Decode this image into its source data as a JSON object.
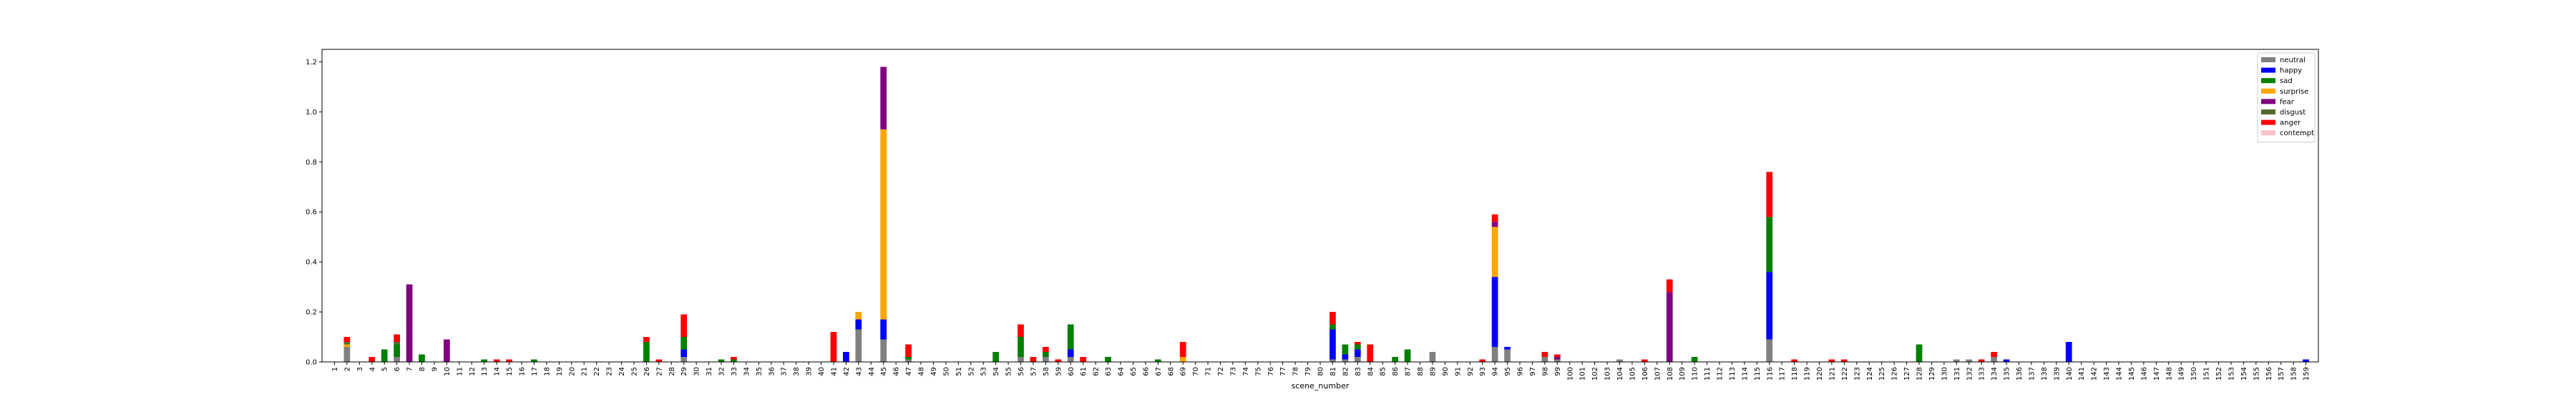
{
  "chart_data": {
    "type": "bar",
    "stacked": true,
    "xlabel": "scene_number",
    "ylabel": "",
    "ylim": [
      0,
      1.25
    ],
    "yticks": [
      "0.0",
      "0.2",
      "0.4",
      "0.6",
      "0.8",
      "1.0",
      "1.2"
    ],
    "x_range": [
      1,
      159
    ],
    "legend_position": "upper right",
    "grid": false,
    "series": [
      {
        "name": "neutral",
        "color": "#808080"
      },
      {
        "name": "happy",
        "color": "#0000ff"
      },
      {
        "name": "sad",
        "color": "#008000"
      },
      {
        "name": "surprise",
        "color": "#ffa500"
      },
      {
        "name": "fear",
        "color": "#800080"
      },
      {
        "name": "disgust",
        "color": "#556b2f"
      },
      {
        "name": "anger",
        "color": "#ff0000"
      },
      {
        "name": "contempt",
        "color": "#ffc0cb"
      }
    ],
    "data": [
      {
        "scene": 2,
        "neutral": 0.06,
        "happy": 0,
        "sad": 0,
        "surprise": 0.01,
        "fear": 0,
        "disgust": 0.01,
        "anger": 0.02,
        "contempt": 0
      },
      {
        "scene": 4,
        "neutral": 0,
        "happy": 0,
        "sad": 0,
        "surprise": 0,
        "fear": 0,
        "disgust": 0,
        "anger": 0.02,
        "contempt": 0
      },
      {
        "scene": 5,
        "neutral": 0,
        "happy": 0,
        "sad": 0.05,
        "surprise": 0,
        "fear": 0,
        "disgust": 0,
        "anger": 0,
        "contempt": 0
      },
      {
        "scene": 6,
        "neutral": 0.02,
        "happy": 0,
        "sad": 0.05,
        "surprise": 0,
        "fear": 0,
        "disgust": 0.01,
        "anger": 0.03,
        "contempt": 0
      },
      {
        "scene": 7,
        "neutral": 0,
        "happy": 0,
        "sad": 0,
        "surprise": 0,
        "fear": 0.31,
        "disgust": 0,
        "anger": 0,
        "contempt": 0
      },
      {
        "scene": 8,
        "neutral": 0,
        "happy": 0,
        "sad": 0.03,
        "surprise": 0,
        "fear": 0,
        "disgust": 0,
        "anger": 0,
        "contempt": 0
      },
      {
        "scene": 10,
        "neutral": 0,
        "happy": 0,
        "sad": 0,
        "surprise": 0,
        "fear": 0.09,
        "disgust": 0,
        "anger": 0,
        "contempt": 0
      },
      {
        "scene": 13,
        "neutral": 0,
        "happy": 0,
        "sad": 0.01,
        "surprise": 0,
        "fear": 0,
        "disgust": 0,
        "anger": 0,
        "contempt": 0
      },
      {
        "scene": 14,
        "neutral": 0,
        "happy": 0,
        "sad": 0,
        "surprise": 0,
        "fear": 0,
        "disgust": 0,
        "anger": 0.01,
        "contempt": 0
      },
      {
        "scene": 15,
        "neutral": 0,
        "happy": 0,
        "sad": 0,
        "surprise": 0,
        "fear": 0,
        "disgust": 0,
        "anger": 0.01,
        "contempt": 0
      },
      {
        "scene": 17,
        "neutral": 0,
        "happy": 0,
        "sad": 0.01,
        "surprise": 0,
        "fear": 0,
        "disgust": 0,
        "anger": 0,
        "contempt": 0
      },
      {
        "scene": 26,
        "neutral": 0,
        "happy": 0,
        "sad": 0.08,
        "surprise": 0,
        "fear": 0,
        "disgust": 0,
        "anger": 0.02,
        "contempt": 0
      },
      {
        "scene": 27,
        "neutral": 0,
        "happy": 0,
        "sad": 0,
        "surprise": 0,
        "fear": 0,
        "disgust": 0,
        "anger": 0.01,
        "contempt": 0
      },
      {
        "scene": 29,
        "neutral": 0.02,
        "happy": 0.03,
        "sad": 0.05,
        "surprise": 0,
        "fear": 0,
        "disgust": 0,
        "anger": 0.09,
        "contempt": 0
      },
      {
        "scene": 32,
        "neutral": 0,
        "happy": 0,
        "sad": 0.01,
        "surprise": 0,
        "fear": 0,
        "disgust": 0,
        "anger": 0,
        "contempt": 0
      },
      {
        "scene": 33,
        "neutral": 0,
        "happy": 0,
        "sad": 0.01,
        "surprise": 0,
        "fear": 0,
        "disgust": 0,
        "anger": 0.01,
        "contempt": 0
      },
      {
        "scene": 41,
        "neutral": 0,
        "happy": 0,
        "sad": 0,
        "surprise": 0,
        "fear": 0,
        "disgust": 0,
        "anger": 0.12,
        "contempt": 0
      },
      {
        "scene": 42,
        "neutral": 0,
        "happy": 0.04,
        "sad": 0,
        "surprise": 0,
        "fear": 0,
        "disgust": 0,
        "anger": 0,
        "contempt": 0
      },
      {
        "scene": 43,
        "neutral": 0.13,
        "happy": 0.04,
        "sad": 0,
        "surprise": 0.03,
        "fear": 0,
        "disgust": 0,
        "anger": 0,
        "contempt": 0
      },
      {
        "scene": 45,
        "neutral": 0.09,
        "happy": 0.08,
        "sad": 0,
        "surprise": 0.76,
        "fear": 0.25,
        "disgust": 0,
        "anger": 0,
        "contempt": 0
      },
      {
        "scene": 47,
        "neutral": 0.01,
        "happy": 0,
        "sad": 0.01,
        "surprise": 0,
        "fear": 0,
        "disgust": 0,
        "anger": 0.05,
        "contempt": 0
      },
      {
        "scene": 54,
        "neutral": 0,
        "happy": 0,
        "sad": 0.04,
        "surprise": 0,
        "fear": 0,
        "disgust": 0,
        "anger": 0,
        "contempt": 0
      },
      {
        "scene": 56,
        "neutral": 0.02,
        "happy": 0,
        "sad": 0.08,
        "surprise": 0,
        "fear": 0,
        "disgust": 0,
        "anger": 0.05,
        "contempt": 0
      },
      {
        "scene": 57,
        "neutral": 0,
        "happy": 0,
        "sad": 0,
        "surprise": 0,
        "fear": 0,
        "disgust": 0,
        "anger": 0.02,
        "contempt": 0
      },
      {
        "scene": 58,
        "neutral": 0.02,
        "happy": 0,
        "sad": 0.02,
        "surprise": 0,
        "fear": 0,
        "disgust": 0,
        "anger": 0.02,
        "contempt": 0
      },
      {
        "scene": 59,
        "neutral": 0,
        "happy": 0,
        "sad": 0,
        "surprise": 0,
        "fear": 0,
        "disgust": 0,
        "anger": 0.01,
        "contempt": 0
      },
      {
        "scene": 60,
        "neutral": 0.02,
        "happy": 0.03,
        "sad": 0.1,
        "surprise": 0,
        "fear": 0,
        "disgust": 0,
        "anger": 0,
        "contempt": 0
      },
      {
        "scene": 61,
        "neutral": 0,
        "happy": 0,
        "sad": 0,
        "surprise": 0,
        "fear": 0,
        "disgust": 0,
        "anger": 0.02,
        "contempt": 0
      },
      {
        "scene": 63,
        "neutral": 0,
        "happy": 0,
        "sad": 0.02,
        "surprise": 0,
        "fear": 0,
        "disgust": 0,
        "anger": 0,
        "contempt": 0
      },
      {
        "scene": 67,
        "neutral": 0,
        "happy": 0,
        "sad": 0.01,
        "surprise": 0,
        "fear": 0,
        "disgust": 0,
        "anger": 0,
        "contempt": 0
      },
      {
        "scene": 69,
        "neutral": 0,
        "happy": 0,
        "sad": 0,
        "surprise": 0.02,
        "fear": 0,
        "disgust": 0,
        "anger": 0.06,
        "contempt": 0
      },
      {
        "scene": 81,
        "neutral": 0.01,
        "happy": 0.12,
        "sad": 0.02,
        "surprise": 0,
        "fear": 0,
        "disgust": 0,
        "anger": 0.05,
        "contempt": 0
      },
      {
        "scene": 82,
        "neutral": 0.01,
        "happy": 0.02,
        "sad": 0.04,
        "surprise": 0,
        "fear": 0,
        "disgust": 0,
        "anger": 0,
        "contempt": 0
      },
      {
        "scene": 83,
        "neutral": 0.02,
        "happy": 0.03,
        "sad": 0.02,
        "surprise": 0,
        "fear": 0,
        "disgust": 0,
        "anger": 0.01,
        "contempt": 0
      },
      {
        "scene": 84,
        "neutral": 0,
        "happy": 0,
        "sad": 0,
        "surprise": 0,
        "fear": 0,
        "disgust": 0,
        "anger": 0.07,
        "contempt": 0
      },
      {
        "scene": 86,
        "neutral": 0,
        "happy": 0,
        "sad": 0.02,
        "surprise": 0,
        "fear": 0,
        "disgust": 0,
        "anger": 0,
        "contempt": 0
      },
      {
        "scene": 87,
        "neutral": 0,
        "happy": 0,
        "sad": 0.05,
        "surprise": 0,
        "fear": 0,
        "disgust": 0,
        "anger": 0,
        "contempt": 0
      },
      {
        "scene": 89,
        "neutral": 0.04,
        "happy": 0,
        "sad": 0,
        "surprise": 0,
        "fear": 0,
        "disgust": 0,
        "anger": 0,
        "contempt": 0
      },
      {
        "scene": 93,
        "neutral": 0,
        "happy": 0,
        "sad": 0,
        "surprise": 0,
        "fear": 0,
        "disgust": 0,
        "anger": 0.01,
        "contempt": 0
      },
      {
        "scene": 94,
        "neutral": 0.06,
        "happy": 0.28,
        "sad": 0,
        "surprise": 0.2,
        "fear": 0.02,
        "disgust": 0,
        "anger": 0.03,
        "contempt": 0
      },
      {
        "scene": 95,
        "neutral": 0.05,
        "happy": 0.01,
        "sad": 0,
        "surprise": 0,
        "fear": 0,
        "disgust": 0,
        "anger": 0,
        "contempt": 0
      },
      {
        "scene": 98,
        "neutral": 0.02,
        "happy": 0,
        "sad": 0,
        "surprise": 0,
        "fear": 0,
        "disgust": 0,
        "anger": 0.02,
        "contempt": 0
      },
      {
        "scene": 99,
        "neutral": 0.01,
        "happy": 0,
        "sad": 0,
        "surprise": 0,
        "fear": 0.01,
        "disgust": 0,
        "anger": 0.01,
        "contempt": 0
      },
      {
        "scene": 104,
        "neutral": 0.01,
        "happy": 0,
        "sad": 0,
        "surprise": 0,
        "fear": 0,
        "disgust": 0,
        "anger": 0,
        "contempt": 0
      },
      {
        "scene": 106,
        "neutral": 0,
        "happy": 0,
        "sad": 0,
        "surprise": 0,
        "fear": 0,
        "disgust": 0,
        "anger": 0.01,
        "contempt": 0
      },
      {
        "scene": 108,
        "neutral": 0,
        "happy": 0,
        "sad": 0,
        "surprise": 0,
        "fear": 0.28,
        "disgust": 0,
        "anger": 0.05,
        "contempt": 0
      },
      {
        "scene": 110,
        "neutral": 0,
        "happy": 0,
        "sad": 0.02,
        "surprise": 0,
        "fear": 0,
        "disgust": 0,
        "anger": 0,
        "contempt": 0
      },
      {
        "scene": 116,
        "neutral": 0.09,
        "happy": 0.27,
        "sad": 0.22,
        "surprise": 0,
        "fear": 0,
        "disgust": 0,
        "anger": 0.18,
        "contempt": 0
      },
      {
        "scene": 118,
        "neutral": 0,
        "happy": 0,
        "sad": 0,
        "surprise": 0,
        "fear": 0,
        "disgust": 0,
        "anger": 0.01,
        "contempt": 0
      },
      {
        "scene": 121,
        "neutral": 0,
        "happy": 0,
        "sad": 0,
        "surprise": 0,
        "fear": 0,
        "disgust": 0,
        "anger": 0.01,
        "contempt": 0
      },
      {
        "scene": 122,
        "neutral": 0,
        "happy": 0,
        "sad": 0,
        "surprise": 0,
        "fear": 0,
        "disgust": 0,
        "anger": 0.01,
        "contempt": 0
      },
      {
        "scene": 128,
        "neutral": 0,
        "happy": 0,
        "sad": 0.07,
        "surprise": 0,
        "fear": 0,
        "disgust": 0,
        "anger": 0,
        "contempt": 0
      },
      {
        "scene": 131,
        "neutral": 0.01,
        "happy": 0,
        "sad": 0,
        "surprise": 0,
        "fear": 0,
        "disgust": 0,
        "anger": 0,
        "contempt": 0
      },
      {
        "scene": 132,
        "neutral": 0.01,
        "happy": 0,
        "sad": 0,
        "surprise": 0,
        "fear": 0,
        "disgust": 0,
        "anger": 0,
        "contempt": 0
      },
      {
        "scene": 133,
        "neutral": 0,
        "happy": 0,
        "sad": 0,
        "surprise": 0,
        "fear": 0,
        "disgust": 0,
        "anger": 0.01,
        "contempt": 0
      },
      {
        "scene": 134,
        "neutral": 0.02,
        "happy": 0,
        "sad": 0,
        "surprise": 0,
        "fear": 0,
        "disgust": 0,
        "anger": 0.02,
        "contempt": 0
      },
      {
        "scene": 135,
        "neutral": 0,
        "happy": 0.01,
        "sad": 0,
        "surprise": 0,
        "fear": 0,
        "disgust": 0,
        "anger": 0,
        "contempt": 0
      },
      {
        "scene": 140,
        "neutral": 0,
        "happy": 0.08,
        "sad": 0,
        "surprise": 0,
        "fear": 0,
        "disgust": 0,
        "anger": 0,
        "contempt": 0
      },
      {
        "scene": 159,
        "neutral": 0,
        "happy": 0.01,
        "sad": 0,
        "surprise": 0,
        "fear": 0,
        "disgust": 0,
        "anger": 0,
        "contempt": 0
      }
    ]
  }
}
